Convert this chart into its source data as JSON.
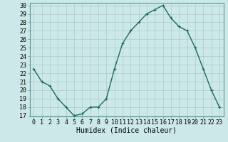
{
  "x": [
    0,
    1,
    2,
    3,
    4,
    5,
    6,
    7,
    8,
    9,
    10,
    11,
    12,
    13,
    14,
    15,
    16,
    17,
    18,
    19,
    20,
    21,
    22,
    23
  ],
  "y": [
    22.5,
    21.0,
    20.5,
    19.0,
    18.0,
    17.0,
    17.2,
    18.0,
    18.0,
    19.0,
    22.5,
    25.5,
    27.0,
    28.0,
    29.0,
    29.5,
    30.0,
    28.5,
    27.5,
    27.0,
    25.0,
    22.5,
    20.0,
    18.0
  ],
  "line_color": "#1a6b5a",
  "marker": "+",
  "marker_color": "#1a6b5a",
  "bg_color": "#cce8e8",
  "grid_color": "#aacccc",
  "xlabel": "Humidex (Indice chaleur)",
  "xlabel_fontsize": 7,
  "ylim": [
    17,
    30
  ],
  "xlim": [
    -0.5,
    23.5
  ],
  "yticks": [
    17,
    18,
    19,
    20,
    21,
    22,
    23,
    24,
    25,
    26,
    27,
    28,
    29,
    30
  ],
  "xticks": [
    0,
    1,
    2,
    3,
    4,
    5,
    6,
    7,
    8,
    9,
    10,
    11,
    12,
    13,
    14,
    15,
    16,
    17,
    18,
    19,
    20,
    21,
    22,
    23
  ],
  "tick_fontsize": 6,
  "linewidth": 1.0,
  "markersize": 3.5
}
